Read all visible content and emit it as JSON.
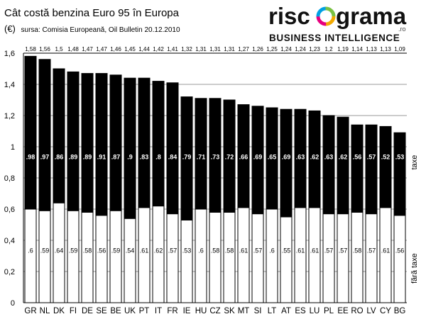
{
  "header": {
    "title": "Cât costă benzina Euro 95 în Europa",
    "unit": "(€)",
    "source": "sursa: Comisia Europeană, Oil Bulletin 20.12.2010"
  },
  "brand": {
    "name_left": "risc",
    "name_right": "grama",
    "ro": ".ro",
    "tagline": "BUSINESS INTELLIGENCE"
  },
  "colors": {
    "taxes": "#000000",
    "without_taxes": "#ffffff",
    "outline": "#000000",
    "grid": "#999999"
  },
  "chart_data": {
    "type": "bar",
    "stacked": true,
    "categories": [
      "GR",
      "NL",
      "DK",
      "FI",
      "DE",
      "SE",
      "BE",
      "UK",
      "PT",
      "IT",
      "FR",
      "IE",
      "HU",
      "CZ",
      "SK",
      "MT",
      "SI",
      "LT",
      "AT",
      "ES",
      "LU",
      "PL",
      "EE",
      "RO",
      "LV",
      "CY",
      "BG"
    ],
    "totals_labels": [
      "1,58",
      "1,56",
      "1,5",
      "1,48",
      "1,47",
      "1,47",
      "1,46",
      "1,45",
      "1,44",
      "1,42",
      "1,41",
      "1,32",
      "1,31",
      "1,31",
      "1,31",
      "1,27",
      "1,26",
      "1,25",
      "1,24",
      "1,24",
      "1,23",
      "1,2",
      "1,19",
      "1,14",
      "1,13",
      "1,13",
      "1,09"
    ],
    "totals": [
      1.58,
      1.56,
      1.5,
      1.48,
      1.47,
      1.47,
      1.46,
      1.45,
      1.44,
      1.42,
      1.41,
      1.32,
      1.31,
      1.31,
      1.31,
      1.27,
      1.26,
      1.25,
      1.24,
      1.24,
      1.23,
      1.2,
      1.19,
      1.14,
      1.13,
      1.13,
      1.09
    ],
    "series": [
      {
        "name": "fără taxe",
        "values": [
          0.6,
          0.59,
          0.64,
          0.59,
          0.58,
          0.56,
          0.59,
          0.54,
          0.61,
          0.62,
          0.57,
          0.53,
          0.6,
          0.58,
          0.58,
          0.61,
          0.57,
          0.6,
          0.55,
          0.61,
          0.61,
          0.57,
          0.57,
          0.58,
          0.57,
          0.61,
          0.56
        ],
        "labels": [
          ".6",
          ".59",
          ".64",
          ".59",
          ".58",
          ".56",
          ".59",
          ".54",
          ".61",
          ".62",
          ".57",
          ".53",
          ".6",
          ".58",
          ".58",
          ".61",
          ".57",
          ".6",
          ".55",
          ".61",
          ".61",
          ".57",
          ".57",
          ".58",
          ".57",
          ".61",
          ".56"
        ]
      },
      {
        "name": "taxe",
        "values": [
          0.98,
          0.97,
          0.86,
          0.89,
          0.89,
          0.91,
          0.87,
          0.9,
          0.83,
          0.8,
          0.84,
          0.79,
          0.71,
          0.73,
          0.72,
          0.66,
          0.69,
          0.65,
          0.69,
          0.63,
          0.62,
          0.63,
          0.62,
          0.56,
          0.57,
          0.52,
          0.53
        ],
        "labels": [
          ".98",
          ".97",
          ".86",
          ".89",
          ".89",
          ".91",
          ".87",
          ".9",
          ".83",
          ".8",
          ".84",
          ".79",
          ".71",
          ".73",
          ".72",
          ".66",
          ".69",
          ".65",
          ".69",
          ".63",
          ".62",
          ".63",
          ".62",
          ".56",
          ".57",
          ".52",
          ".53"
        ]
      }
    ],
    "ylim": [
      0,
      1.6
    ],
    "yticks": [
      "0",
      "0,2",
      "0,4",
      "0,6",
      "0,8",
      "1",
      "1,2",
      "1,4",
      "1,6"
    ],
    "ytick_values": [
      0,
      0.2,
      0.4,
      0.6,
      0.8,
      1.0,
      1.2,
      1.4,
      1.6
    ],
    "grid": true
  }
}
